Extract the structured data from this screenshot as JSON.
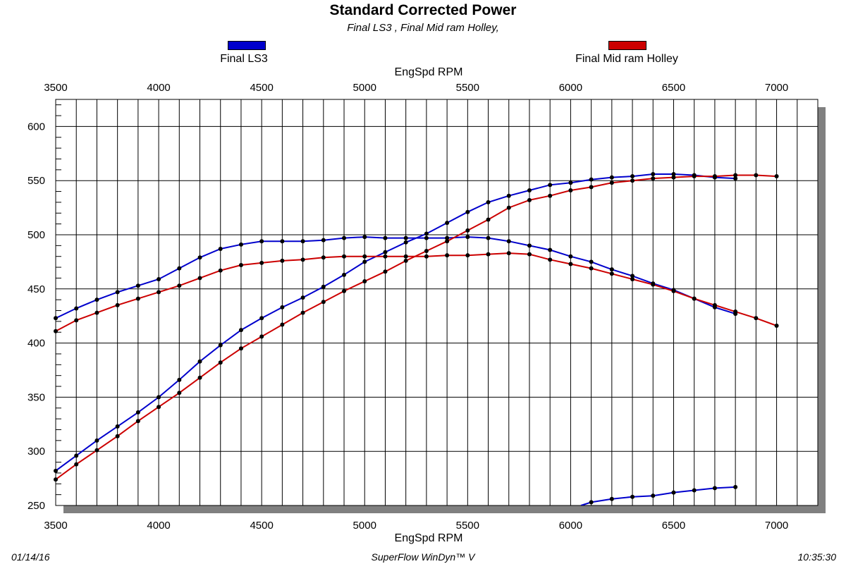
{
  "chart_data": {
    "type": "line",
    "title": "Standard Corrected Power",
    "subtitle": "Final LS3 , Final Mid ram Holley,",
    "xlabel": "EngSpd RPM",
    "xlim": [
      3500,
      7200
    ],
    "ylim": [
      250,
      625
    ],
    "xticks": [
      3500,
      4000,
      4500,
      5000,
      5500,
      6000,
      6500,
      7000
    ],
    "yticks": [
      250,
      300,
      350,
      400,
      450,
      500,
      550,
      600
    ],
    "grid": true,
    "legend_position": "top",
    "series": [
      {
        "name": "Final LS3",
        "color": "#0000CC",
        "curves": [
          {
            "x": [
              3500,
              3600,
              3700,
              3800,
              3900,
              4000,
              4100,
              4200,
              4300,
              4400,
              4500,
              4600,
              4700,
              4800,
              4900,
              5000,
              5100,
              5200,
              5300,
              5400,
              5500,
              5600,
              5700,
              5800,
              5900,
              6000,
              6100,
              6200,
              6300,
              6400,
              6500,
              6600,
              6700,
              6800
            ],
            "y": [
              282,
              296,
              310,
              323,
              336,
              350,
              366,
              383,
              398,
              412,
              423,
              433,
              442,
              452,
              463,
              475,
              484,
              493,
              501,
              511,
              521,
              530,
              536,
              541,
              546,
              548,
              551,
              553,
              554,
              556,
              556,
              555,
              553,
              552
            ]
          },
          {
            "x": [
              3500,
              3600,
              3700,
              3800,
              3900,
              4000,
              4100,
              4200,
              4300,
              4400,
              4500,
              4600,
              4700,
              4800,
              4900,
              5000,
              5100,
              5200,
              5300,
              5400,
              5500,
              5600,
              5700,
              5800,
              5900,
              6000,
              6100,
              6200,
              6300,
              6400,
              6500,
              6600,
              6700,
              6800
            ],
            "y": [
              423,
              432,
              440,
              447,
              453,
              459,
              469,
              479,
              487,
              491,
              494,
              494,
              494,
              495,
              497,
              498,
              497,
              497,
              497,
              497,
              498,
              497,
              494,
              490,
              486,
              480,
              475,
              468,
              462,
              455,
              449,
              441,
              433,
              427
            ]
          },
          {
            "x": [
              6050,
              6100,
              6200,
              6300,
              6400,
              6500,
              6600,
              6700,
              6800
            ],
            "y": [
              250,
              253,
              256,
              258,
              259,
              262,
              264,
              266,
              267
            ]
          }
        ]
      },
      {
        "name": "Final Mid ram Holley",
        "color": "#CC0000",
        "curves": [
          {
            "x": [
              3500,
              3600,
              3700,
              3800,
              3900,
              4000,
              4100,
              4200,
              4300,
              4400,
              4500,
              4600,
              4700,
              4800,
              4900,
              5000,
              5100,
              5200,
              5300,
              5400,
              5500,
              5600,
              5700,
              5800,
              5900,
              6000,
              6100,
              6200,
              6300,
              6400,
              6500,
              6600,
              6700,
              6800,
              6900,
              7000
            ],
            "y": [
              274,
              288,
              301,
              314,
              328,
              341,
              354,
              368,
              382,
              395,
              406,
              417,
              428,
              438,
              448,
              457,
              466,
              476,
              485,
              494,
              504,
              514,
              525,
              532,
              536,
              541,
              544,
              548,
              550,
              552,
              553,
              554,
              554,
              555,
              555,
              554
            ]
          },
          {
            "x": [
              3500,
              3600,
              3700,
              3800,
              3900,
              4000,
              4100,
              4200,
              4300,
              4400,
              4500,
              4600,
              4700,
              4800,
              4900,
              5000,
              5100,
              5200,
              5300,
              5400,
              5500,
              5600,
              5700,
              5800,
              5900,
              6000,
              6100,
              6200,
              6300,
              6400,
              6500,
              6600,
              6700,
              6800,
              6900,
              7000
            ],
            "y": [
              411,
              421,
              428,
              435,
              441,
              447,
              453,
              460,
              467,
              472,
              474,
              476,
              477,
              479,
              480,
              480,
              480,
              480,
              480,
              481,
              481,
              482,
              483,
              482,
              477,
              473,
              469,
              464,
              459,
              454,
              448,
              441,
              435,
              429,
              423,
              416
            ]
          }
        ]
      }
    ]
  },
  "footer": {
    "date": "01/14/16",
    "software": "SuperFlow WinDyn™ V",
    "time": "10:35:30"
  }
}
